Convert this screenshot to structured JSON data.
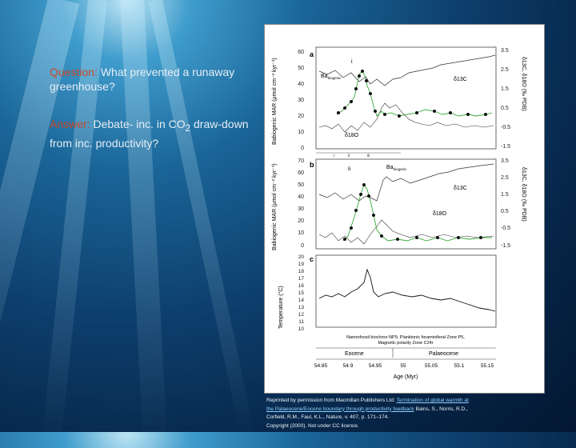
{
  "slide": {
    "question_label": "Question:",
    "question_text": "What prevented a runaway greenhouse?",
    "answer_label": "Answer:",
    "answer_text_before_sub": "Debate- inc. in CO",
    "answer_sub": "2",
    "answer_text_after_sub": " draw-down from inc. productivity?"
  },
  "figure": {
    "panel_a": {
      "label": "a",
      "left_ticks": [
        "60",
        "50",
        "40",
        "30",
        "20",
        "10",
        "0"
      ],
      "right_ticks": [
        "3.5",
        "2.5",
        "1.5",
        "0.5",
        "-0.5",
        "-1.5"
      ],
      "marker": "i",
      "ba_label": "Ba",
      "ba_sub": "biogenic",
      "d13c_label": "δ13C",
      "d18o_label": "δ18O",
      "left_axis_label": "Babiogenic MAR (μmol cm⁻² kyr⁻¹)",
      "right_axis_label": "δ13C, δ18O (‰ PDB)"
    },
    "panel_b": {
      "label": "b",
      "left_ticks": [
        "70",
        "60",
        "50",
        "40",
        "30",
        "20",
        "10",
        "0"
      ],
      "right_ticks": [
        "3.5",
        "2.5",
        "1.5",
        "0.5",
        "-0.5",
        "-1.5"
      ],
      "marker": "ii",
      "ba_label": "Ba",
      "ba_sub": "biogenic",
      "d13c_label": "δ13C",
      "d18o_label": "δ18O",
      "left_axis_label": "Babiogenic MAR (μmol cm⁻² kyr⁻¹)",
      "right_axis_label": "δ13C, δ18O (‰ PDB)"
    },
    "panel_c": {
      "label": "c",
      "left_ticks": [
        "20",
        "19",
        "18",
        "17",
        "16",
        "15",
        "14",
        "13",
        "12",
        "11",
        "10"
      ],
      "left_axis_label": "Temperature (°C)"
    },
    "depth_markers": [
      "i",
      "ii",
      "iii"
    ],
    "zone_line1": "Nannofossil biochron NP9, Planktonic foraminiferal Zone P5,",
    "zone_line2": "Magnetic polarity Zone C24r",
    "epoch_left": "Eocene",
    "epoch_right": "Palaeocene",
    "age_ticks": [
      "54.85",
      "54.9",
      "54.95",
      "55",
      "55.05",
      "55.1",
      "55.15"
    ],
    "age_label": "Age (Myr)"
  },
  "credit": {
    "line1_prefix": "Reprinted by permission from Macmillan Publishers Ltd: ",
    "link_text": "Termination of global warmth at the Palaeocene/Eocene boundary through productivity feedback",
    "authors": "Bains, S., Norris, R.D., Corfield, R.M., Faul, K.L., ",
    "journal": "Nature",
    "volume": ", v. 407, p. 171–174.",
    "copyright": "Copyright (2000). Not under CC licence."
  },
  "colors": {
    "key_text": "#c64a2a",
    "body_text": "#e6eef5",
    "ba_series": "#3aa83a",
    "link": "#8fd0ff"
  }
}
